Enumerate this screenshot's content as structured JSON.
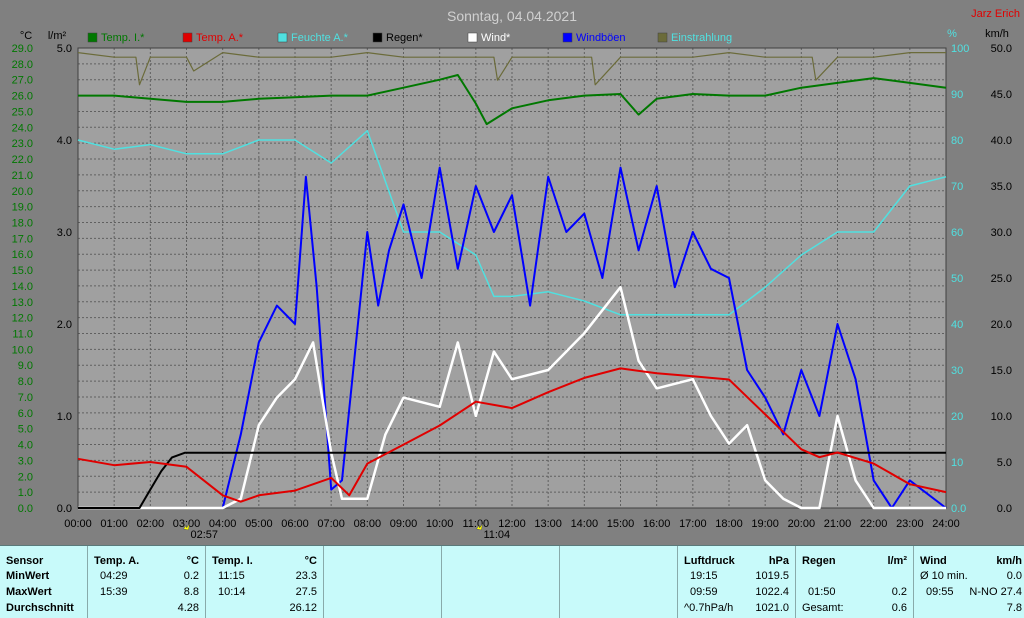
{
  "title": "Sonntag, 04.04.2021",
  "author": "Jarz Erich",
  "colors": {
    "background": "#808080",
    "plot_bg": "#a0a0a0",
    "temp_inside": "#007800",
    "temp_outside": "#e00000",
    "humidity": "#50e0e0",
    "rain": "#000000",
    "wind": "#ffffff",
    "gust": "#0000ff",
    "radiation": "#6b6b3a",
    "footer_bg": "#c8fafa"
  },
  "chart_data": {
    "type": "line",
    "title": "Sonntag, 04.04.2021",
    "x_unit": "time of day (hours)",
    "xlim": [
      0,
      24
    ],
    "x_ticks": [
      "00:00",
      "01:00",
      "02:00",
      "03:00",
      "04:00",
      "05:00",
      "06:00",
      "07:00",
      "08:00",
      "09:00",
      "10:00",
      "11:00",
      "12:00",
      "13:00",
      "14:00",
      "15:00",
      "16:00",
      "17:00",
      "18:00",
      "19:00",
      "20:00",
      "21:00",
      "22:00",
      "23:00",
      "24:00"
    ],
    "axes": {
      "temp": {
        "label": "°C",
        "ylim": [
          0,
          29
        ],
        "ticks": [
          "0.0",
          "1.0",
          "2.0",
          "3.0",
          "4.0",
          "5.0",
          "6.0",
          "7.0",
          "8.0",
          "9.0",
          "10.0",
          "11.0",
          "12.0",
          "13.0",
          "14.0",
          "15.0",
          "16.0",
          "17.0",
          "18.0",
          "19.0",
          "20.0",
          "21.0",
          "22.0",
          "23.0",
          "24.0",
          "25.0",
          "26.0",
          "27.0",
          "28.0",
          "29.0"
        ]
      },
      "rain": {
        "label": "l/m²",
        "ylim": [
          0,
          5
        ],
        "ticks": [
          "0.0",
          "1.0",
          "2.0",
          "3.0",
          "4.0",
          "5.0"
        ]
      },
      "humidity": {
        "label": "%",
        "ylim": [
          0,
          100
        ],
        "ticks": [
          "0.0",
          "10",
          "20",
          "30",
          "40",
          "50",
          "60",
          "70",
          "80",
          "90",
          "100"
        ]
      },
      "wind": {
        "label": "km/h",
        "ylim": [
          0,
          50
        ],
        "ticks": [
          "0.0",
          "5.0",
          "10.0",
          "15.0",
          "20.0",
          "25.0",
          "30.0",
          "35.0",
          "40.0",
          "45.0",
          "50.0"
        ]
      }
    },
    "legend": [
      "Temp. I.*",
      "Temp. A.*",
      "Feuchte A.*",
      "Regen*",
      "Wind*",
      "Windböen",
      "Einstrahlung"
    ],
    "series": [
      {
        "name": "Temp. I.*",
        "axis": "temp",
        "x": [
          0,
          1,
          2,
          3,
          4,
          5,
          6,
          7,
          8,
          9,
          10,
          10.5,
          11,
          11.3,
          12,
          13,
          14,
          15,
          15.5,
          16,
          17,
          18,
          19,
          20,
          21,
          22,
          23,
          24
        ],
        "y": [
          26.0,
          26.0,
          25.8,
          25.6,
          25.6,
          25.8,
          25.9,
          26.0,
          26.0,
          26.5,
          27.0,
          27.3,
          25.5,
          24.2,
          25.2,
          25.7,
          26.0,
          26.1,
          24.8,
          25.8,
          26.1,
          26.0,
          26.0,
          26.5,
          26.8,
          27.1,
          26.8,
          26.5
        ]
      },
      {
        "name": "Temp. A.*",
        "axis": "temp",
        "x": [
          0,
          1,
          2,
          3,
          4,
          4.5,
          5,
          6,
          7,
          7.5,
          8,
          9,
          10,
          11,
          12,
          13,
          14,
          15,
          16,
          17,
          18,
          19,
          20,
          20.5,
          21,
          22,
          23,
          24
        ],
        "y": [
          3.1,
          2.7,
          2.9,
          2.6,
          0.8,
          0.4,
          0.8,
          1.1,
          1.9,
          0.8,
          2.8,
          4.0,
          5.2,
          6.7,
          6.3,
          7.3,
          8.2,
          8.8,
          8.5,
          8.3,
          8.1,
          5.9,
          3.7,
          3.2,
          3.5,
          2.8,
          1.5,
          1.0
        ]
      },
      {
        "name": "Feuchte A.*",
        "axis": "humidity",
        "x": [
          0,
          1,
          2,
          3,
          4,
          5,
          6,
          7,
          8,
          9,
          10,
          11,
          11.5,
          12,
          13,
          14,
          15,
          16,
          17,
          18,
          19,
          20,
          21,
          22,
          23,
          24
        ],
        "y": [
          80,
          78,
          79,
          77,
          77,
          80,
          80,
          75,
          82,
          60,
          60,
          55,
          46,
          46,
          47,
          45,
          42,
          42,
          42,
          42,
          48,
          55,
          60,
          60,
          70,
          72
        ]
      },
      {
        "name": "Regen*",
        "axis": "rain",
        "x": [
          0,
          1.7,
          2.0,
          2.3,
          2.6,
          2.95,
          3.0,
          24
        ],
        "y": [
          0,
          0,
          0.2,
          0.4,
          0.55,
          0.6,
          0.6,
          0.6
        ]
      },
      {
        "name": "Wind*",
        "axis": "wind",
        "x": [
          0,
          4,
          4.5,
          5,
          5.5,
          6,
          6.5,
          7,
          7.3,
          8,
          8.5,
          9,
          10,
          10.5,
          11,
          11.5,
          12,
          13,
          14,
          15,
          15.5,
          16,
          17,
          17.5,
          18,
          18.5,
          19,
          19.5,
          20,
          20.5,
          21,
          21.5,
          22,
          23,
          24
        ],
        "y": [
          0,
          0,
          1,
          9,
          12,
          14,
          18,
          6,
          1,
          1,
          8,
          12,
          11,
          18,
          10,
          17,
          14,
          15,
          19,
          24,
          16,
          13,
          14,
          10,
          7,
          9,
          3,
          1,
          0,
          0,
          10,
          3,
          0,
          0,
          0
        ]
      },
      {
        "name": "Windböen",
        "axis": "wind",
        "x": [
          0,
          4,
          4.5,
          5,
          5.5,
          6,
          6.3,
          6.6,
          7,
          7.3,
          8,
          8.3,
          8.6,
          9,
          9.5,
          10,
          10.5,
          11,
          11.5,
          12,
          12.5,
          13,
          13.5,
          14,
          14.5,
          15,
          15.5,
          16,
          16.5,
          17,
          17.5,
          18,
          18.5,
          19,
          19.5,
          20,
          20.5,
          21,
          21.5,
          22,
          22.5,
          23,
          24
        ],
        "y": [
          0,
          0,
          8,
          18,
          22,
          20,
          36,
          24,
          2,
          3,
          30,
          22,
          28,
          33,
          25,
          37,
          26,
          35,
          30,
          34,
          22,
          36,
          30,
          32,
          25,
          37,
          28,
          35,
          24,
          30,
          26,
          25,
          15,
          12,
          8,
          15,
          10,
          20,
          14,
          3,
          0,
          3,
          0
        ]
      },
      {
        "name": "Einstrahlung",
        "axis": "humidity",
        "x": [
          0,
          1,
          1.6,
          1.7,
          2,
          3,
          3.2,
          4,
          5,
          6,
          7,
          8,
          9,
          10,
          11,
          11.5,
          11.6,
          12,
          13,
          14,
          14.2,
          14.3,
          15,
          16,
          17,
          18,
          19,
          20,
          20.3,
          20.4,
          21,
          22,
          23,
          24
        ],
        "y": [
          99,
          98,
          98,
          92,
          98,
          98,
          95,
          99,
          98,
          98,
          98,
          99,
          98,
          98,
          98,
          98,
          93,
          98,
          98,
          98,
          98,
          92,
          98,
          98,
          98,
          99,
          98,
          98,
          98,
          93,
          98,
          98,
          99,
          99
        ]
      }
    ],
    "markers": [
      {
        "label": "02:57"
      },
      {
        "label": "11:04"
      }
    ]
  },
  "footer": {
    "sensor": {
      "header": "Sensor",
      "rows": [
        "MinWert",
        "MaxWert",
        "Durchschnitt"
      ]
    },
    "temp_a": {
      "header": "Temp. A.",
      "unit": "°C",
      "min_time": "04:29",
      "min_val": "0.2",
      "max_time": "15:39",
      "max_val": "8.8",
      "avg": "4.28"
    },
    "temp_i": {
      "header": "Temp. I.",
      "unit": "°C",
      "min_time": "11:15",
      "min_val": "23.3",
      "max_time": "10:14",
      "max_val": "27.5",
      "avg": "26.12"
    },
    "pressure": {
      "header": "Luftdruck",
      "unit": "hPa",
      "min_time": "19:15",
      "min_val": "1019.5",
      "max_time": "09:59",
      "max_val": "1022.4",
      "trend": "^0.7hPa/h",
      "avg": "1021.0"
    },
    "rain": {
      "header": "Regen",
      "unit": "l/m²",
      "time": "01:50",
      "val": "0.2",
      "total_label": "Gesamt:",
      "total": "0.6"
    },
    "wind": {
      "header": "Wind",
      "unit": "km/h",
      "avg_label": "Ø 10 min.",
      "avg_val": "0.0",
      "max_time": "09:55",
      "max_val": "N-NO 27.4",
      "mean": "7.8"
    }
  }
}
